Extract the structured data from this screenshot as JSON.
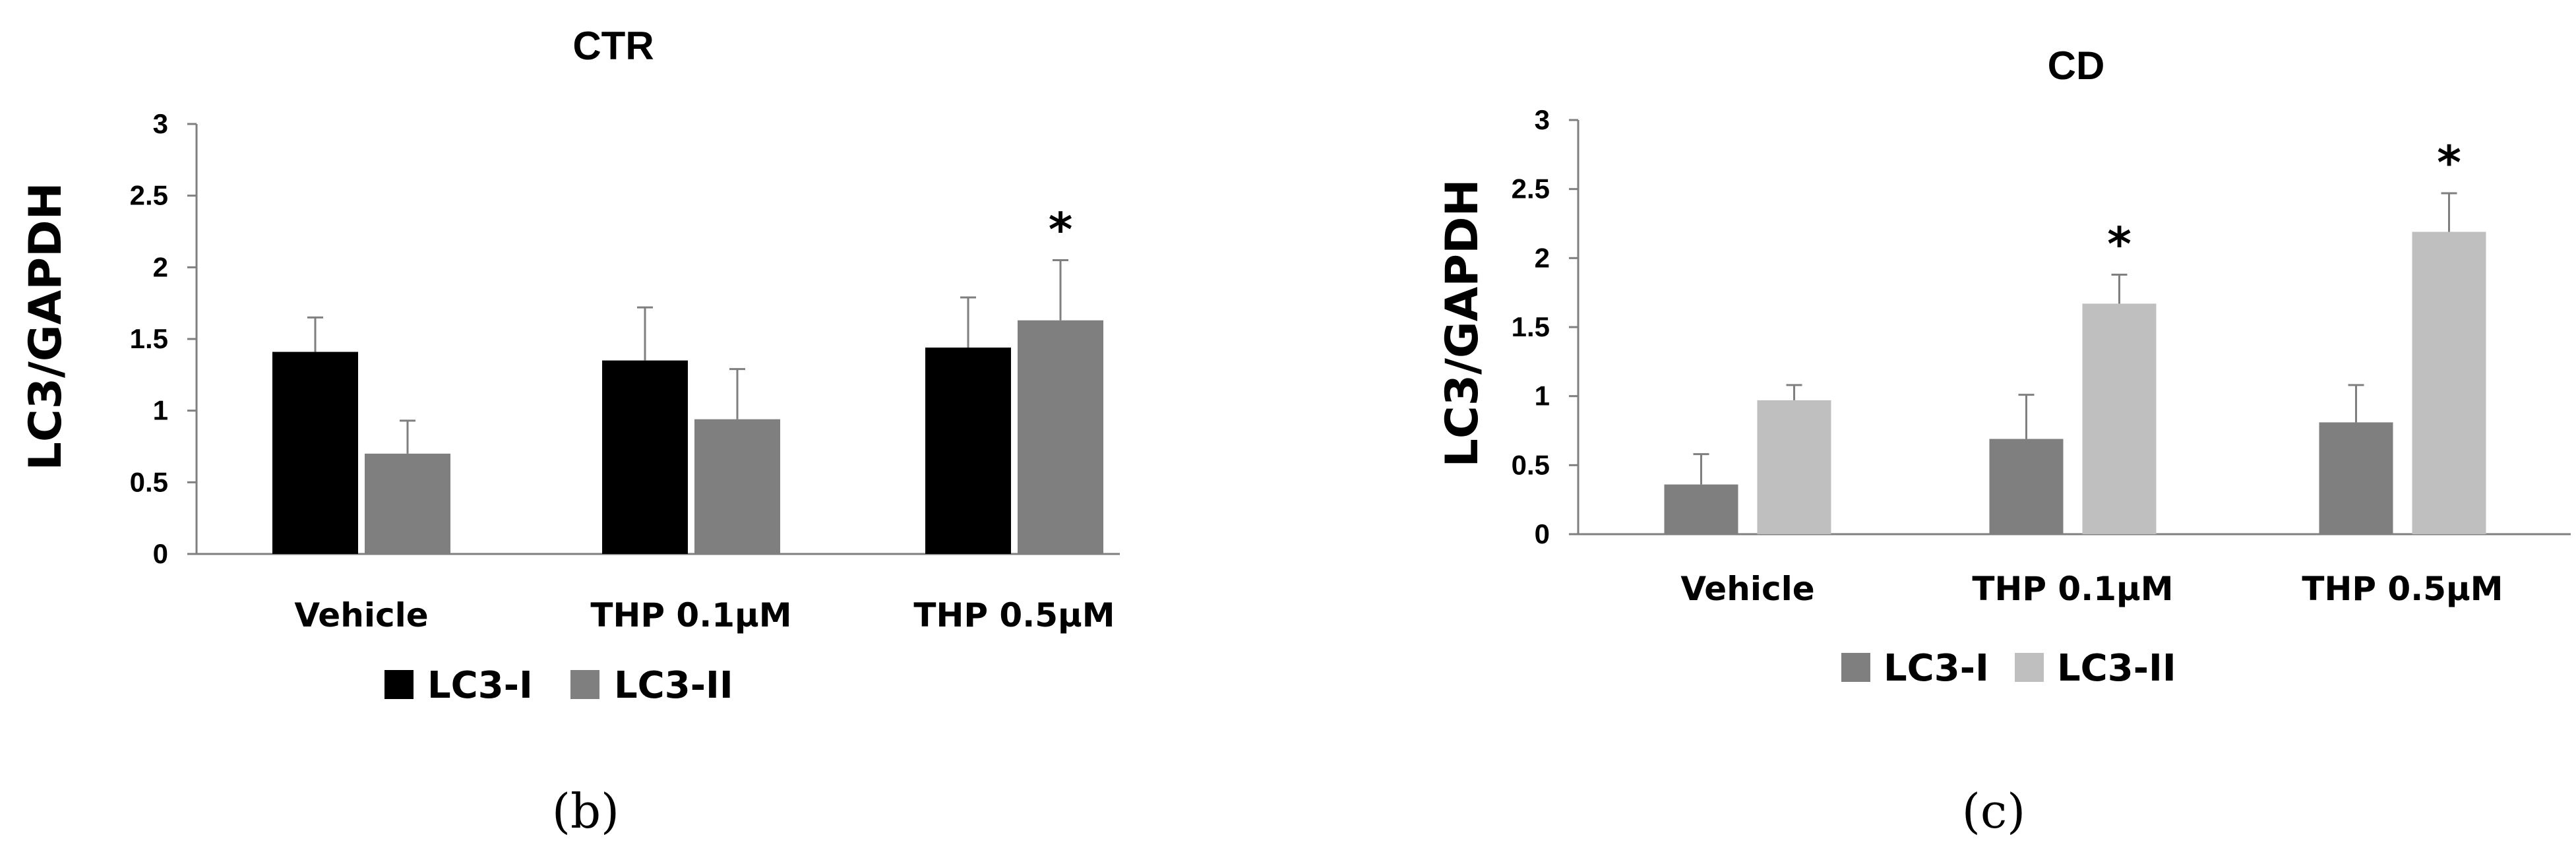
{
  "chart_data": [
    {
      "panel": "(b)",
      "type": "bar",
      "title": "CTR",
      "xlabel": "",
      "ylabel": "LC3/GAPDH",
      "ylim": [
        0,
        3
      ],
      "yticks": [
        "0",
        "0.5",
        "1",
        "1.5",
        "2",
        "2.5",
        "3"
      ],
      "categories": [
        "Vehicle",
        "THP 0.1μM",
        "THP 0.5μM"
      ],
      "series": [
        {
          "name": "LC3-I",
          "color": "#000000",
          "values": [
            1.41,
            1.35,
            1.44
          ],
          "errors": [
            0.24,
            0.37,
            0.35
          ],
          "annotations": [
            "",
            "",
            ""
          ]
        },
        {
          "name": "LC3-II",
          "color": "#7f7f7f",
          "values": [
            0.7,
            0.94,
            1.63
          ],
          "errors": [
            0.23,
            0.35,
            0.42
          ],
          "annotations": [
            "",
            "",
            "*"
          ]
        }
      ],
      "legend": "bottom",
      "grid": false
    },
    {
      "panel": "(c)",
      "type": "bar",
      "title": "CD",
      "xlabel": "",
      "ylabel": "LC3/GAPDH",
      "ylim": [
        0,
        3
      ],
      "yticks": [
        "0",
        "0.5",
        "1",
        "1.5",
        "2",
        "2.5",
        "3"
      ],
      "categories": [
        "Vehicle",
        "THP 0.1μM",
        "THP 0.5μM"
      ],
      "series": [
        {
          "name": "LC3-I",
          "color": "#7f7f7f",
          "values": [
            0.36,
            0.69,
            0.81
          ],
          "errors": [
            0.22,
            0.32,
            0.27
          ],
          "annotations": [
            "",
            "",
            ""
          ]
        },
        {
          "name": "LC3-II",
          "color": "#bfbfbf",
          "values": [
            0.97,
            1.67,
            2.19
          ],
          "errors": [
            0.11,
            0.21,
            0.28
          ],
          "annotations": [
            "",
            "*",
            "*"
          ]
        }
      ],
      "legend": "bottom",
      "grid": false
    }
  ]
}
